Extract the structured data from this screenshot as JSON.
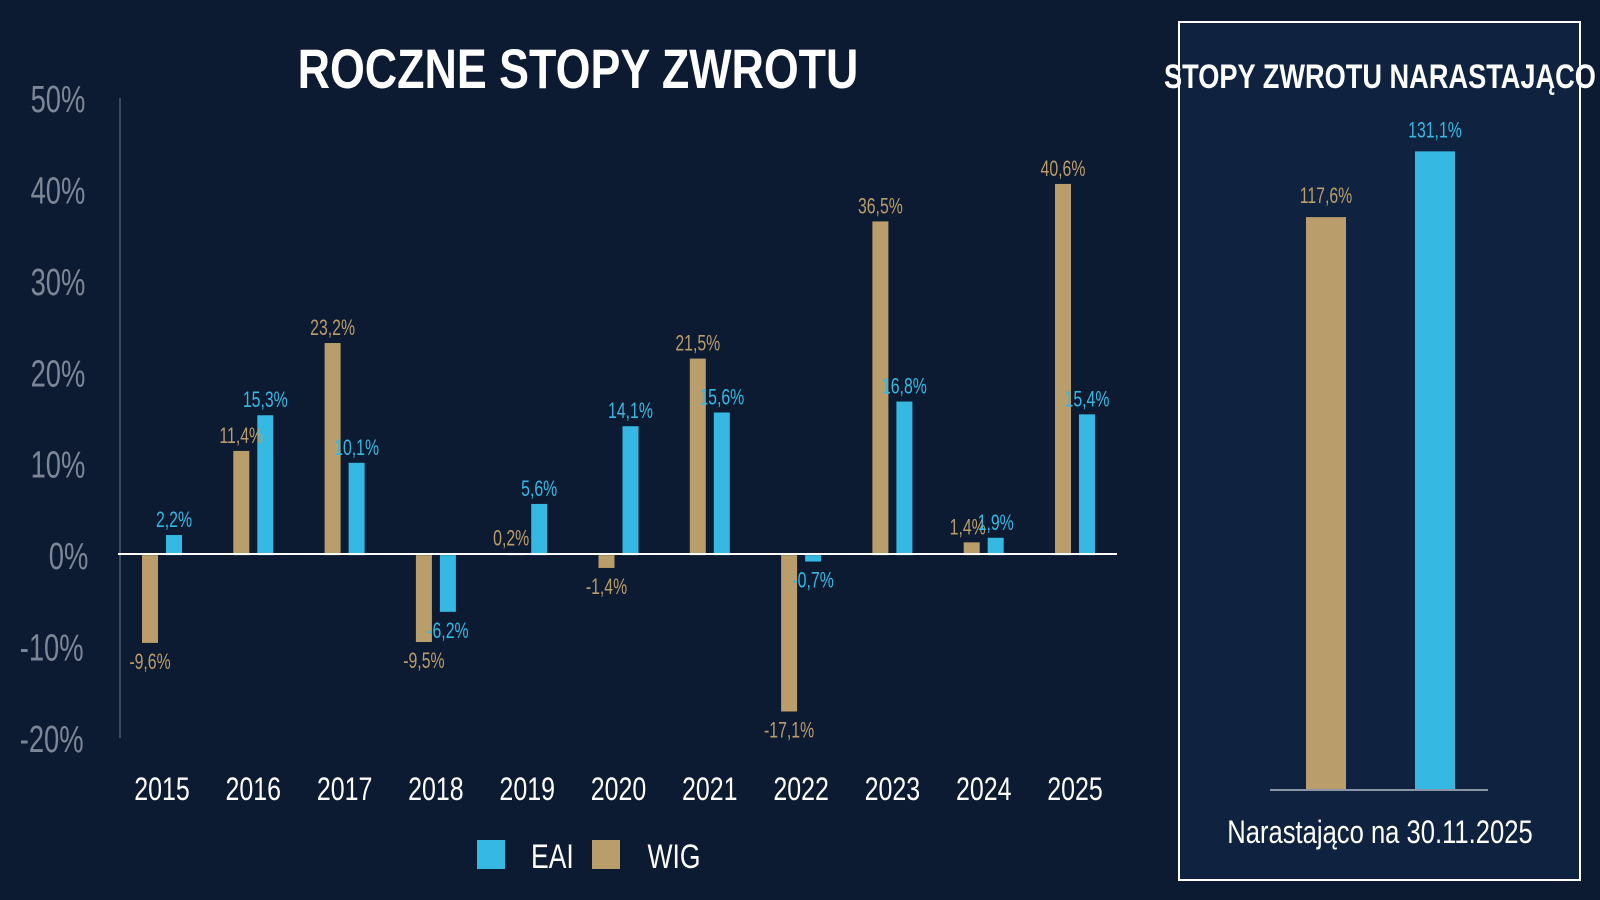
{
  "colors": {
    "background": "#0c1a32",
    "panel_background": "#0f2340",
    "panel_border": "#ffffff",
    "eai": "#35b9e2",
    "wig": "#b99d6b",
    "axis_text": "#7d8696",
    "text": "#ffffff"
  },
  "chart_data": [
    {
      "type": "bar",
      "title": "ROCZNE STOPY ZWROTU",
      "categories": [
        "2015",
        "2016",
        "2017",
        "2018",
        "2019",
        "2020",
        "2021",
        "2022",
        "2023",
        "2024",
        "2025"
      ],
      "series": [
        {
          "name": "WIG",
          "color": "#b99d6b",
          "values": [
            -9.6,
            11.4,
            23.2,
            -9.5,
            0.2,
            -1.4,
            21.5,
            -17.1,
            36.5,
            1.4,
            40.6
          ],
          "labels": [
            "-9,6%",
            "11,4%",
            "23,2%",
            "-9,5%",
            "0,2%",
            "-1,4%",
            "21,5%",
            "-17,1%",
            "36,5%",
            "1,4%",
            "40,6%"
          ]
        },
        {
          "name": "EAI",
          "color": "#35b9e2",
          "values": [
            2.2,
            15.3,
            10.1,
            -6.2,
            5.6,
            14.1,
            15.6,
            -0.7,
            16.8,
            1.9,
            15.4
          ],
          "labels": [
            "2,2%",
            "15,3%",
            "10,1%",
            "-6,2%",
            "5,6%",
            "14,1%",
            "15,6%",
            "-0,7%",
            "16,8%",
            "1,9%",
            "15,4%"
          ]
        }
      ],
      "ylim": [
        -20,
        50
      ],
      "yticks": [
        50,
        40,
        30,
        20,
        10,
        0,
        -10,
        -20
      ],
      "ytick_labels": [
        "50%",
        "40%",
        "30%",
        "20%",
        "10%",
        "0%",
        "-10%",
        "-20%"
      ],
      "legend": [
        {
          "name": "EAI",
          "color": "#35b9e2"
        },
        {
          "name": "WIG",
          "color": "#b99d6b"
        }
      ],
      "legend_position": "bottom-center",
      "grid": false
    },
    {
      "type": "bar",
      "title": "STOPY ZWROTU NARASTAJĄCO",
      "xlabel": "Narastająco na 30.11.2025",
      "series": [
        {
          "name": "WIG",
          "color": "#b99d6b",
          "value": 117.6,
          "label": "117,6%"
        },
        {
          "name": "EAI",
          "color": "#35b9e2",
          "value": 131.1,
          "label": "131,1%"
        }
      ],
      "ylim": [
        0,
        140
      ]
    }
  ]
}
